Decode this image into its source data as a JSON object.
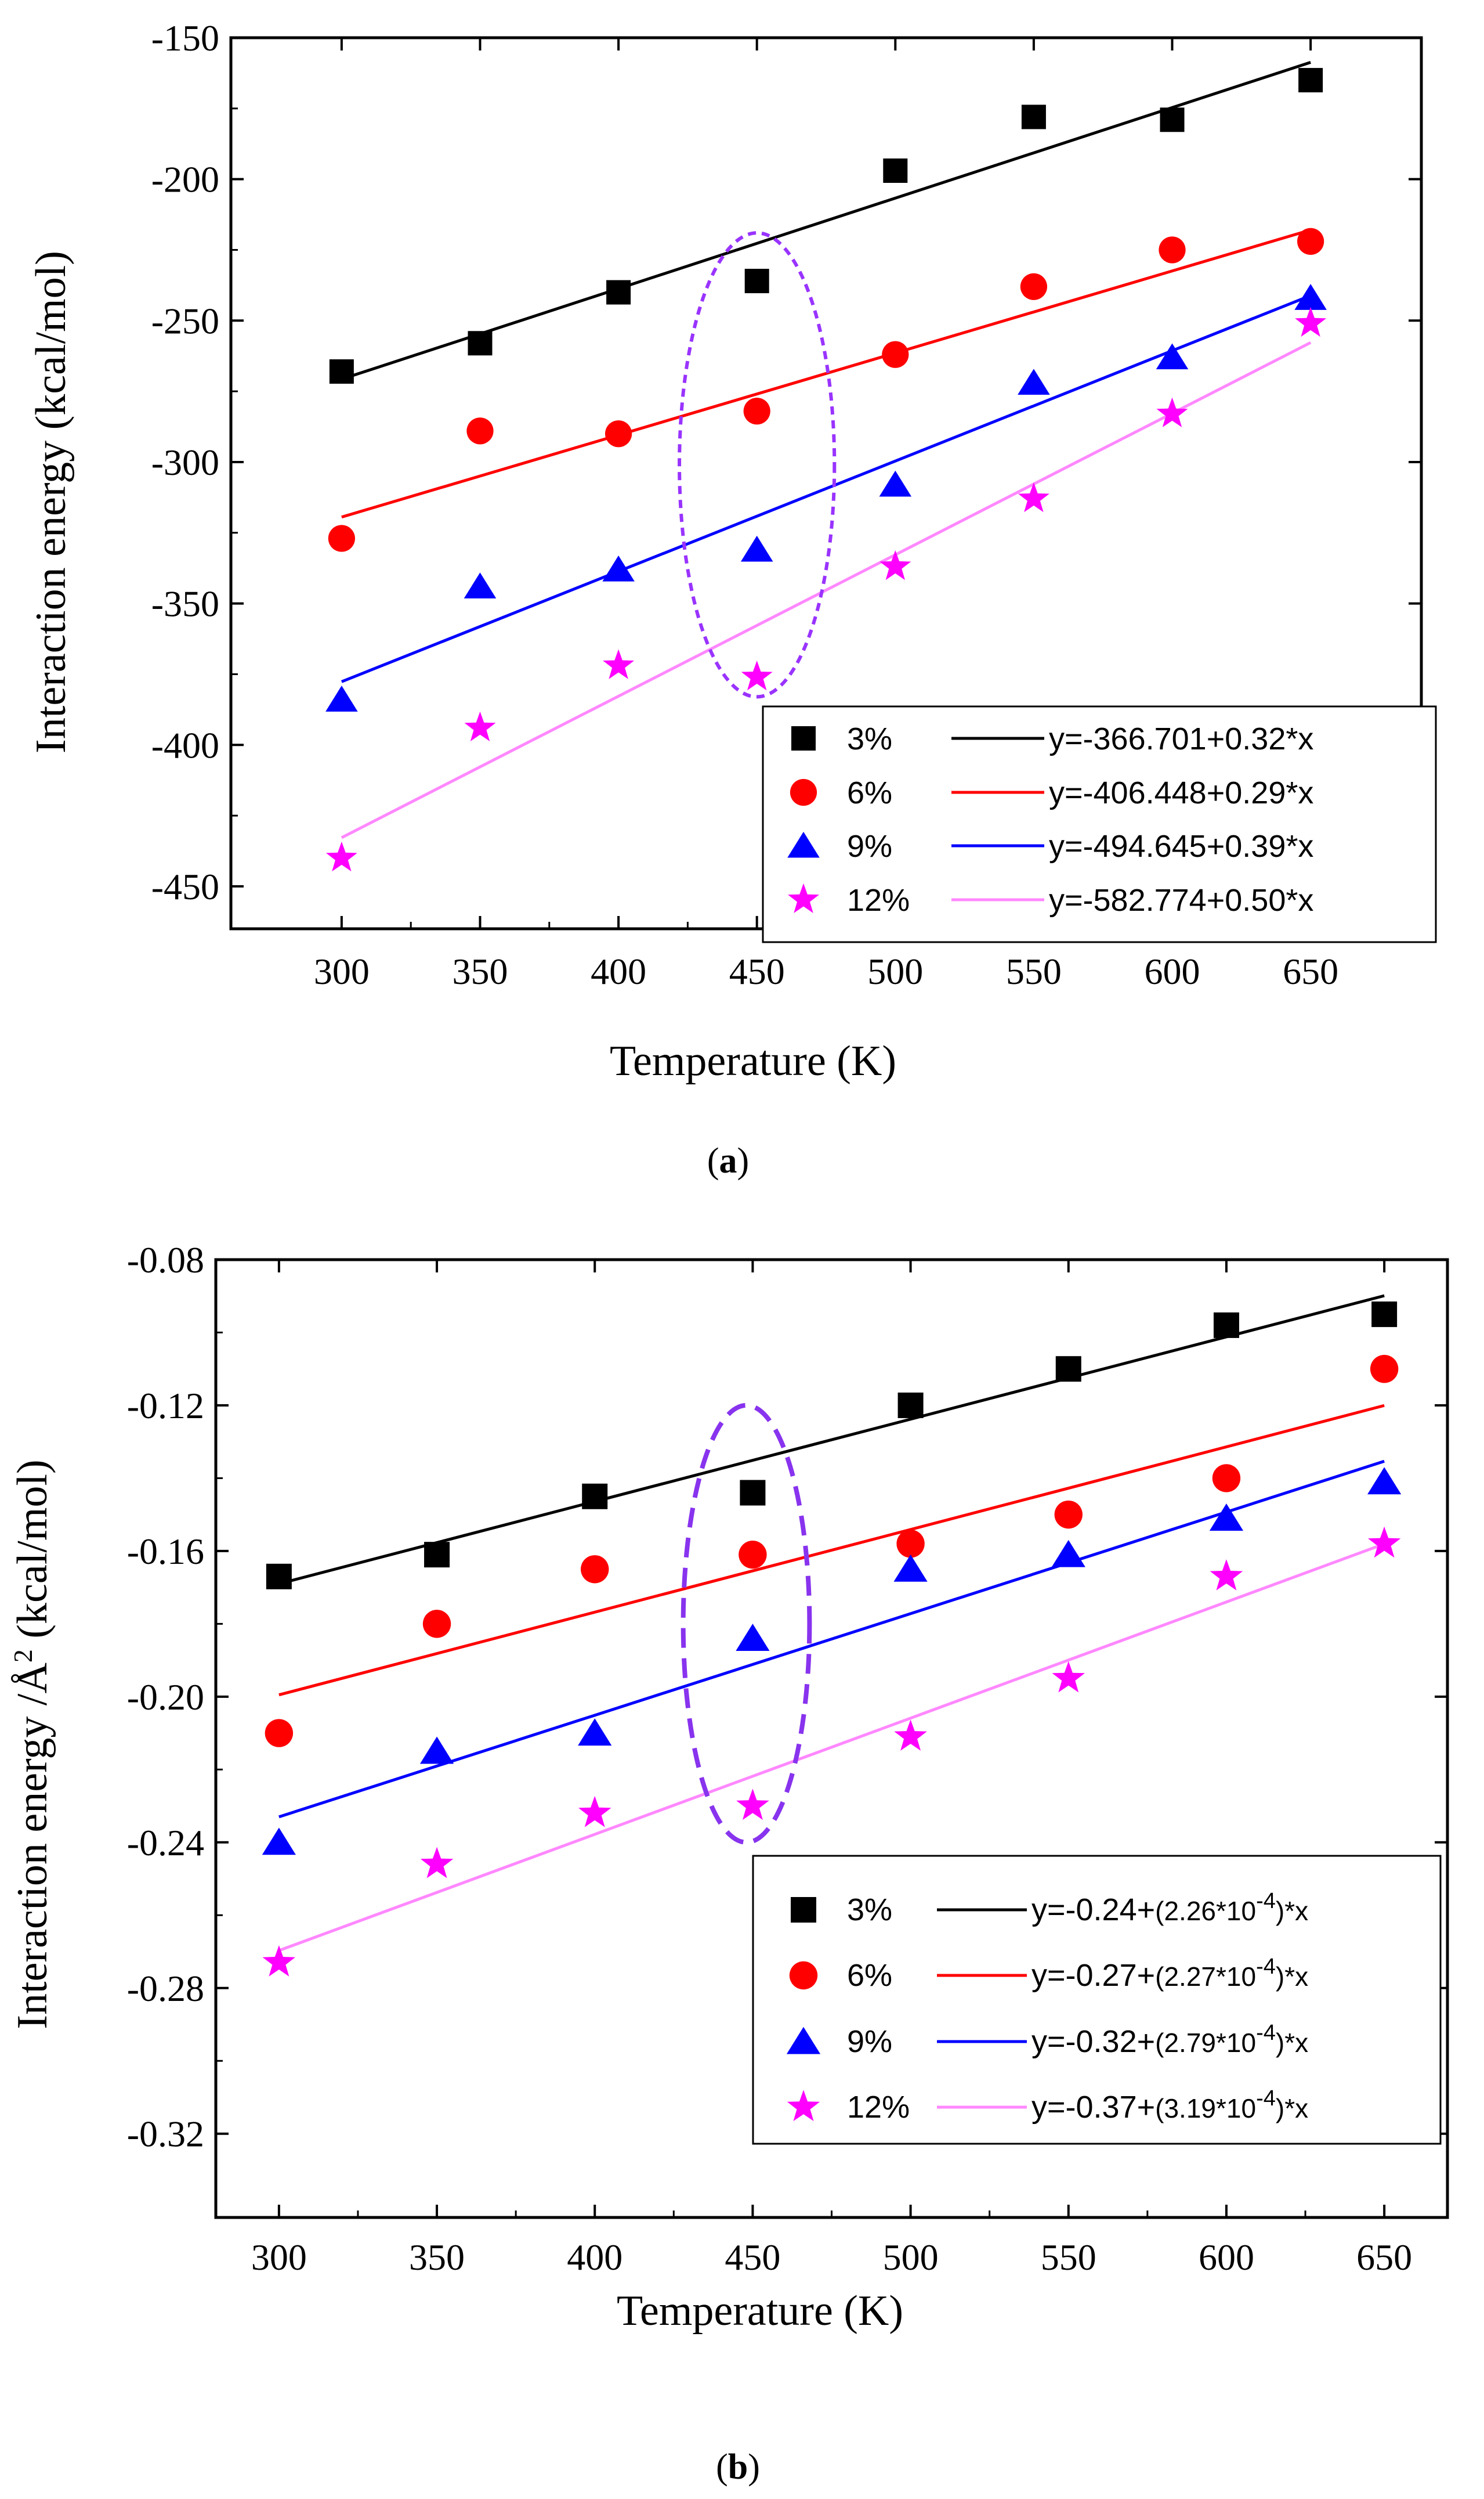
{
  "chart_data": [
    {
      "type": "scatter",
      "panel": "a",
      "panel_label": "a",
      "xlabel": "Temperature (K)",
      "ylabel": "Interaction energy (kcal/mol)",
      "xlim": [
        260,
        690
      ],
      "ylim": [
        -465,
        -150
      ],
      "xticks": [
        300,
        350,
        400,
        450,
        500,
        550,
        600,
        650
      ],
      "yticks": [
        -150,
        -200,
        -250,
        -300,
        -350,
        -400,
        -450
      ],
      "x": [
        300,
        350,
        400,
        450,
        500,
        550,
        600,
        650
      ],
      "series": [
        {
          "name": "3%",
          "marker": "square",
          "color": "#000000",
          "line_color": "#000000",
          "fit": "y=-366.701+0.32*x",
          "fit_intercept": -366.701,
          "fit_slope": 0.32,
          "values": [
            -268,
            -258,
            -240,
            -236,
            -197,
            -178,
            -179,
            -165
          ]
        },
        {
          "name": "6%",
          "marker": "circle",
          "color": "#ff0000",
          "line_color": "#ff0000",
          "fit": "y=-406.448+0.29*x",
          "fit_intercept": -406.448,
          "fit_slope": 0.29,
          "values": [
            -327,
            -289,
            -290,
            -282,
            -262,
            -238,
            -225,
            -222
          ]
        },
        {
          "name": "9%",
          "marker": "triangle",
          "color": "#0000ff",
          "line_color": "#0000ff",
          "fit": "y=-494.645+0.39*x",
          "fit_intercept": -494.645,
          "fit_slope": 0.39,
          "values": [
            -384,
            -344,
            -338,
            -331,
            -308,
            -272,
            -263,
            -242
          ]
        },
        {
          "name": "12%",
          "marker": "star",
          "color": "#ff00ff",
          "line_color": "#ff88ff",
          "fit": "y=-582.774+0.50*x",
          "fit_intercept": -582.774,
          "fit_slope": 0.5,
          "values": [
            -440,
            -394,
            -372,
            -376,
            -337,
            -313,
            -283,
            -251
          ]
        }
      ],
      "annotation": {
        "type": "dashed-ellipse",
        "color": "#9933ff",
        "center_x": 450,
        "center_y": -301,
        "radius_x": 28,
        "radius_y": 82
      }
    },
    {
      "type": "scatter",
      "panel": "b",
      "panel_label": "b",
      "xlabel": "Temperature (K)",
      "ylabel_prefix": "Interaction energy /Å",
      "ylabel_sup": "2",
      "ylabel_suffix": " (kcal/mol)",
      "xlim": [
        280,
        670
      ],
      "ylim": [
        -0.343,
        -0.08
      ],
      "xticks": [
        300,
        350,
        400,
        450,
        500,
        550,
        600,
        650
      ],
      "yticks": [
        -0.08,
        -0.12,
        -0.16,
        -0.2,
        -0.24,
        -0.28,
        -0.32
      ],
      "ytick_labels": [
        "-0.08",
        "-0.12",
        "-0.16",
        "-0.20",
        "-0.24",
        "-0.28",
        "-0.32"
      ],
      "x": [
        300,
        350,
        400,
        450,
        500,
        550,
        600,
        650
      ],
      "series": [
        {
          "name": "3%",
          "marker": "square",
          "color": "#000000",
          "line_color": "#000000",
          "fit_prefix": "y=-0.24+",
          "fit_coef": "(2.26*10",
          "fit_exp": "-4",
          "fit_suffix": ")*x",
          "fit_intercept": -0.2368,
          "fit_slope": 0.000226,
          "values": [
            -0.167,
            -0.161,
            -0.145,
            -0.144,
            -0.12,
            -0.11,
            -0.098,
            -0.095
          ]
        },
        {
          "name": "6%",
          "marker": "circle",
          "color": "#ff0000",
          "line_color": "#ff0000",
          "fit_prefix": "y=-0.27+",
          "fit_coef": "(2.27*10",
          "fit_exp": "-4",
          "fit_suffix": ")*x",
          "fit_intercept": -0.2676,
          "fit_slope": 0.000227,
          "values": [
            -0.21,
            -0.18,
            -0.165,
            -0.161,
            -0.158,
            -0.15,
            -0.14,
            -0.11
          ]
        },
        {
          "name": "9%",
          "marker": "triangle",
          "color": "#0000ff",
          "line_color": "#0000ff",
          "fit_prefix": "y=-0.32+",
          "fit_coef": "(2.79*10",
          "fit_exp": "-4",
          "fit_suffix": ")*x",
          "fit_intercept": -0.3167,
          "fit_slope": 0.000279,
          "values": [
            -0.24,
            -0.215,
            -0.21,
            -0.184,
            -0.165,
            -0.161,
            -0.151,
            -0.141
          ]
        },
        {
          "name": "12%",
          "marker": "star",
          "color": "#ff00ff",
          "line_color": "#ff88ff",
          "fit_prefix": "y=-0.37+",
          "fit_coef": "(3.19*10",
          "fit_exp": "-4",
          "fit_suffix": ")*x",
          "fit_intercept": -0.3654,
          "fit_slope": 0.000319,
          "values": [
            -0.273,
            -0.246,
            -0.232,
            -0.23,
            -0.211,
            -0.195,
            -0.167,
            -0.158
          ]
        }
      ],
      "annotation": {
        "type": "dashed-ellipse",
        "color": "#8833ee",
        "center_x": 448,
        "center_y": -0.18,
        "radius_x": 20,
        "radius_y": 0.06
      }
    }
  ]
}
